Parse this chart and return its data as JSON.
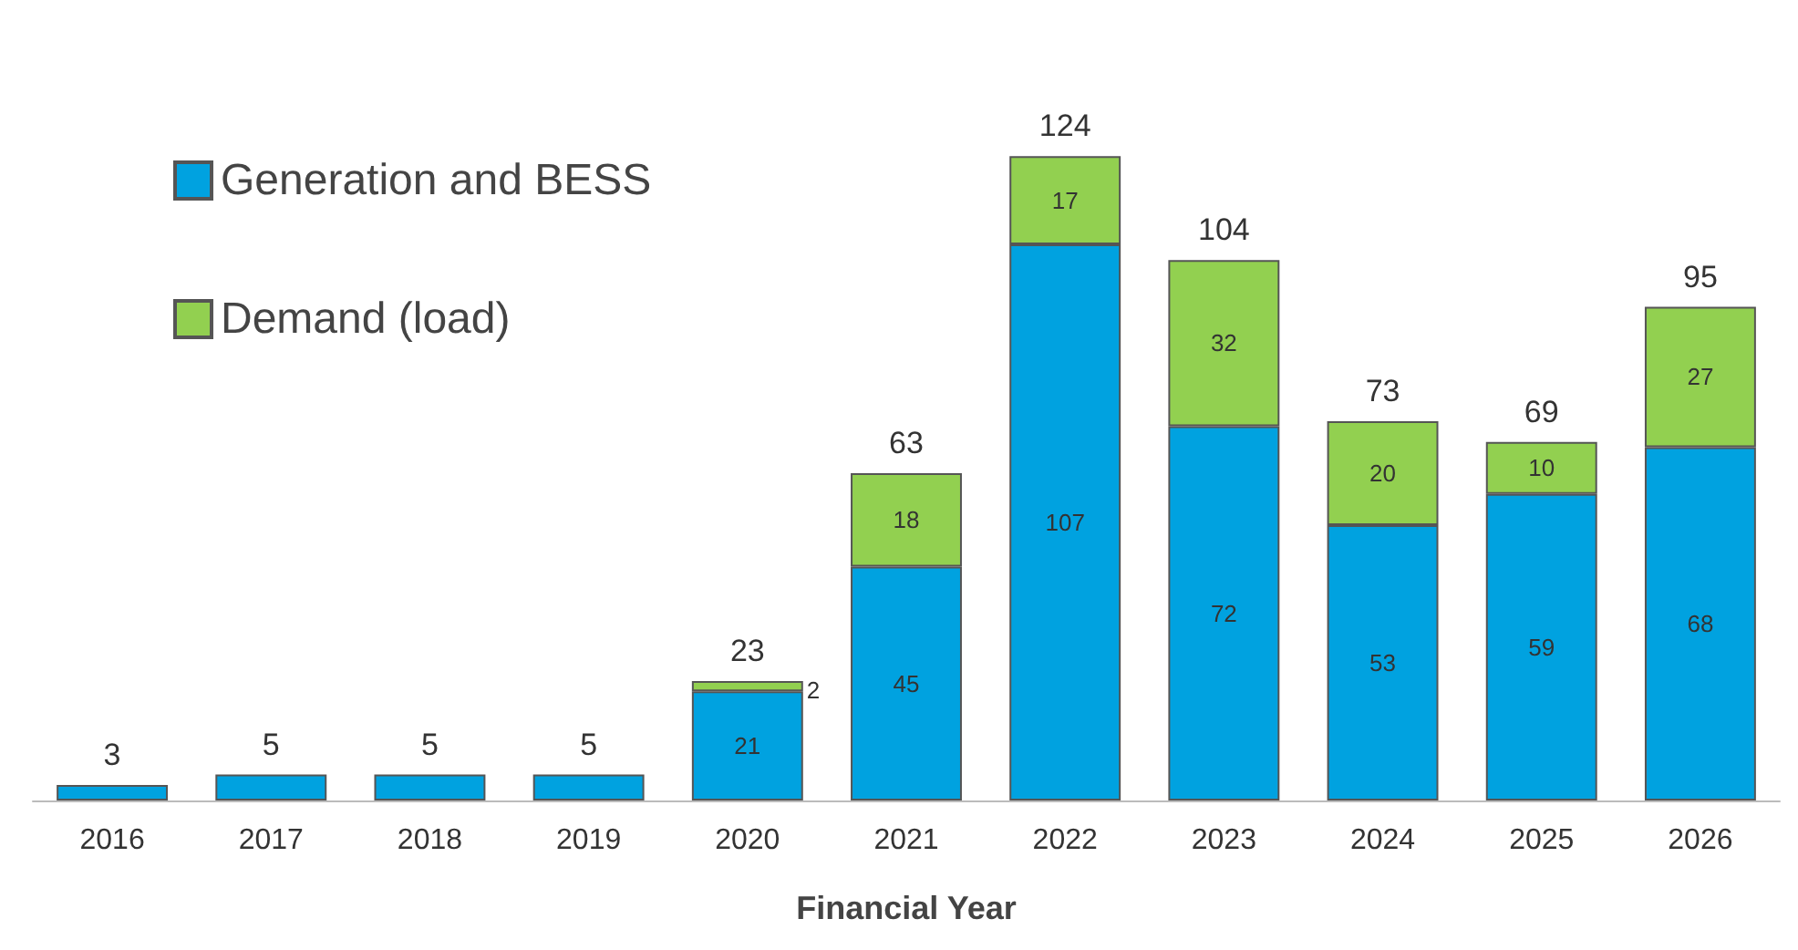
{
  "chart_data": {
    "type": "bar",
    "stacked": true,
    "xlabel": "Financial Year",
    "categories": [
      "2016",
      "2017",
      "2018",
      "2019",
      "2020",
      "2021",
      "2022",
      "2023",
      "2024",
      "2025",
      "2026"
    ],
    "series": [
      {
        "name": "Generation and BESS",
        "color": "#00a2e0",
        "values": [
          3,
          5,
          5,
          5,
          21,
          45,
          107,
          72,
          53,
          59,
          68
        ],
        "value_labels": [
          null,
          null,
          null,
          null,
          "21",
          "45",
          "107",
          "72",
          "53",
          "59",
          "68"
        ]
      },
      {
        "name": "Demand (load)",
        "color": "#92d050",
        "values": [
          null,
          null,
          null,
          null,
          2,
          18,
          17,
          32,
          20,
          10,
          27
        ],
        "value_labels": [
          null,
          null,
          null,
          null,
          "2",
          "18",
          "17",
          "32",
          "20",
          "10",
          "27"
        ]
      }
    ],
    "totals": [
      "3",
      "5",
      "5",
      "5",
      "23",
      "63",
      "124",
      "104",
      "73",
      "69",
      "95"
    ],
    "legend": "top left",
    "grid": false
  }
}
